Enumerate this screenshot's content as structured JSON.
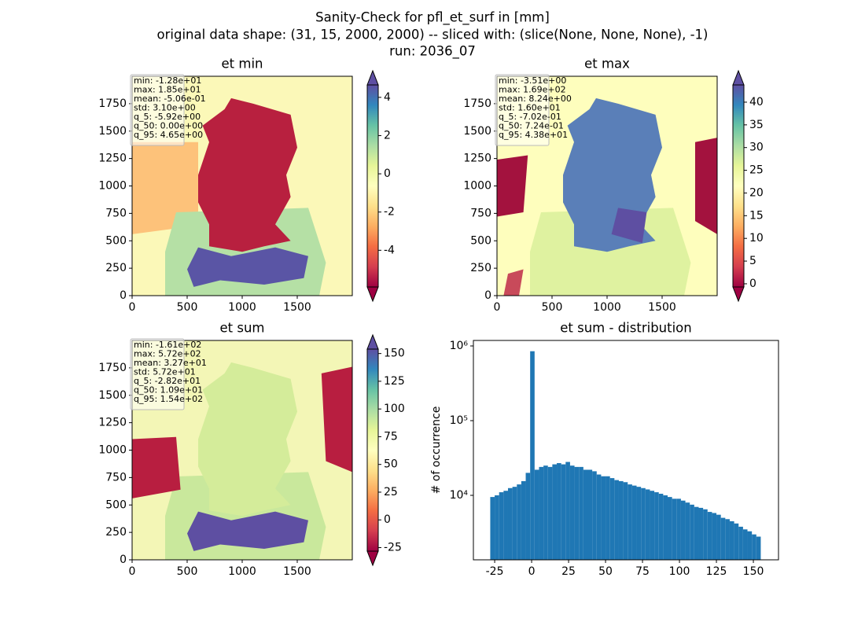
{
  "title": [
    "Sanity-Check for pfl_et_surf in [mm]",
    "original data shape: (31, 15, 2000, 2000) -- sliced with: (slice(None, None, None), -1)",
    "run: 2036_07"
  ],
  "chart_data": [
    {
      "type": "heatmap",
      "title": "et min",
      "xlim": [
        0,
        2000
      ],
      "ylim": [
        0,
        2000
      ],
      "xticks": [
        0,
        500,
        1000,
        1500
      ],
      "yticks": [
        0,
        250,
        500,
        750,
        1000,
        1250,
        1500,
        1750
      ],
      "stats": [
        "min: -1.28e+01",
        "max: 1.85e+01",
        "mean: -5.06e-01",
        "std: 3.10e+00",
        "q_5: -5.92e+00",
        "q_50: 0.00e+00",
        "q_95: 4.65e+00"
      ],
      "colorbar": {
        "clim": [
          -5.92,
          4.65
        ],
        "ticks": [
          -4,
          -2,
          0,
          2,
          4
        ],
        "extend": "both",
        "colors": [
          "#9e0142",
          "#d53e4f",
          "#f46d43",
          "#fdae61",
          "#fee08b",
          "#ffffbf",
          "#e6f598",
          "#abdda4",
          "#66c2a5",
          "#3288bd",
          "#5e4fa2"
        ]
      }
    },
    {
      "type": "heatmap",
      "title": "et max",
      "xlim": [
        0,
        2000
      ],
      "ylim": [
        0,
        2000
      ],
      "xticks": [
        0,
        500,
        1000,
        1500
      ],
      "yticks": [
        0,
        250,
        500,
        750,
        1000,
        1250,
        1500,
        1750
      ],
      "stats": [
        "min: -3.51e+00",
        "max: 1.69e+02",
        "mean: 8.24e+00",
        "std: 1.60e+01",
        "q_5: -7.02e-01",
        "q_50: 7.24e-01",
        "q_95: 4.38e+01"
      ],
      "colorbar": {
        "clim": [
          -0.702,
          43.8
        ],
        "ticks": [
          0,
          5,
          10,
          15,
          20,
          25,
          30,
          35,
          40
        ],
        "extend": "both",
        "colors": [
          "#9e0142",
          "#d53e4f",
          "#f46d43",
          "#fdae61",
          "#fee08b",
          "#ffffbf",
          "#e6f598",
          "#abdda4",
          "#66c2a5",
          "#3288bd",
          "#5e4fa2"
        ]
      }
    },
    {
      "type": "heatmap",
      "title": "et sum",
      "xlim": [
        0,
        2000
      ],
      "ylim": [
        0,
        2000
      ],
      "xticks": [
        0,
        500,
        1000,
        1500
      ],
      "yticks": [
        0,
        250,
        500,
        750,
        1000,
        1250,
        1500,
        1750
      ],
      "stats": [
        "min: -1.61e+02",
        "max: 5.72e+02",
        "mean: 3.27e+01",
        "std: 5.72e+01",
        "q_5: -2.82e+01",
        "q_50: 1.09e+01",
        "q_95: 1.54e+02"
      ],
      "colorbar": {
        "clim": [
          -28.2,
          154
        ],
        "ticks": [
          -25,
          0,
          25,
          50,
          75,
          100,
          125,
          150
        ],
        "extend": "both",
        "colors": [
          "#9e0142",
          "#d53e4f",
          "#f46d43",
          "#fdae61",
          "#fee08b",
          "#ffffbf",
          "#e6f598",
          "#abdda4",
          "#66c2a5",
          "#3288bd",
          "#5e4fa2"
        ]
      }
    },
    {
      "type": "histogram",
      "title": "et sum - distribution",
      "ylabel": "# of occurrence",
      "color": "#1f77b4",
      "log_y": true,
      "xlim": [
        -39.4,
        167
      ],
      "xticks": [
        -25,
        0,
        25,
        50,
        75,
        100,
        125,
        150
      ],
      "ylim": [
        1370,
        1185000
      ],
      "yticks": [
        {
          "value": 10000,
          "label": "10⁴"
        },
        {
          "value": 100000,
          "label": "10⁵"
        },
        {
          "value": 1000000,
          "label": "10⁶"
        }
      ],
      "bins": [
        -28,
        -25,
        -22,
        -19,
        -16,
        -13,
        -10,
        -7,
        -4,
        -1,
        2,
        5,
        8,
        11,
        14,
        17,
        20,
        23,
        26,
        29,
        32,
        35,
        38,
        41,
        44,
        47,
        50,
        53,
        56,
        59,
        62,
        65,
        68,
        71,
        74,
        77,
        80,
        83,
        86,
        89,
        92,
        95,
        98,
        101,
        104,
        107,
        110,
        113,
        116,
        119,
        122,
        125,
        128,
        131,
        134,
        137,
        140,
        143,
        146,
        149,
        152,
        155
      ],
      "counts": [
        9500,
        10000,
        11000,
        11500,
        12500,
        13000,
        14000,
        15500,
        20000,
        850000,
        22000,
        24000,
        25000,
        24000,
        26000,
        27000,
        26000,
        28000,
        25000,
        24000,
        24000,
        22000,
        22000,
        21000,
        19000,
        18000,
        18000,
        17000,
        16000,
        15500,
        15000,
        14000,
        13500,
        13000,
        12500,
        12000,
        11500,
        11000,
        10500,
        10000,
        9500,
        9000,
        9000,
        8500,
        8000,
        7500,
        7000,
        6800,
        6500,
        6000,
        5800,
        5500,
        5000,
        4800,
        4500,
        4200,
        3800,
        3500,
        3300,
        3000,
        2800
      ]
    }
  ]
}
